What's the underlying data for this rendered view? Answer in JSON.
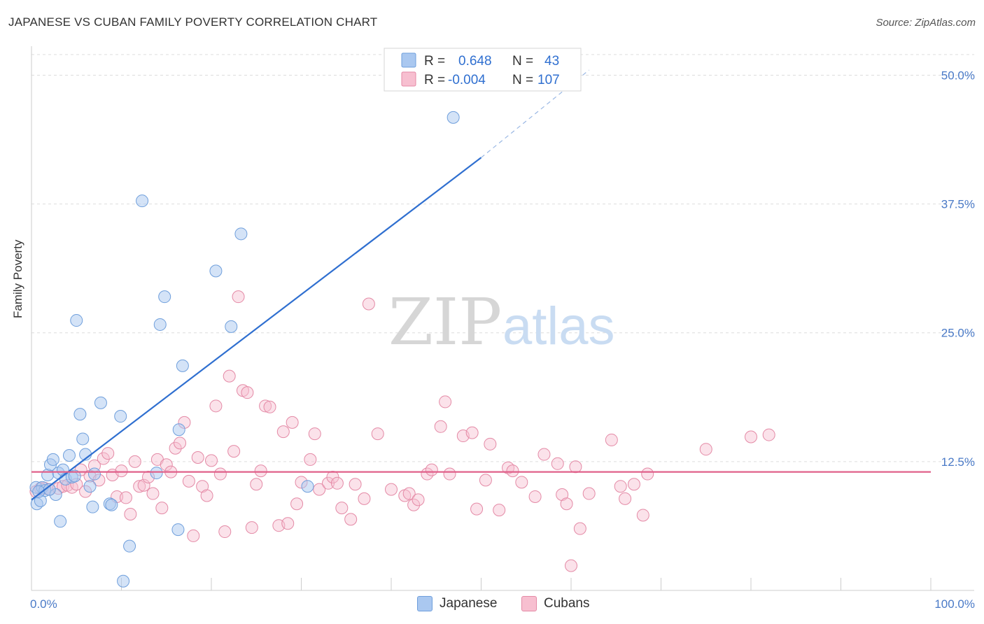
{
  "title": "JAPANESE VS CUBAN FAMILY POVERTY CORRELATION CHART",
  "source": "Source: ZipAtlas.com",
  "watermark": {
    "zip": "ZIP",
    "atlas": "atlas"
  },
  "colors": {
    "japanese_fill": "#aac8f0",
    "japanese_stroke": "#6f9fdc",
    "japanese_line": "#2f6fd0",
    "cubans_fill": "#f7bfd0",
    "cubans_stroke": "#e48aa6",
    "cubans_line": "#e0608a",
    "axis_text": "#4a7ac7",
    "grid": "#dddddd"
  },
  "legend": {
    "rows": [
      {
        "r_label": "R =",
        "r_value": "0.648",
        "n_label": "N =",
        "n_value": "43"
      },
      {
        "r_label": "R =",
        "r_value": "-0.004",
        "n_label": "N =",
        "n_value": "107"
      }
    ]
  },
  "bottom_legend": {
    "japanese": "Japanese",
    "cubans": "Cubans"
  },
  "chart_data": {
    "type": "scatter",
    "xlabel": "",
    "ylabel": "Family Poverty",
    "xlim": [
      0,
      100
    ],
    "ylim": [
      0,
      52
    ],
    "x_tick_labels": [
      {
        "value": 0,
        "label": "0.0%"
      },
      {
        "value": 100,
        "label": "100.0%"
      }
    ],
    "y_ticks": [
      {
        "value": 12.5,
        "label": "12.5%"
      },
      {
        "value": 25.0,
        "label": "25.0%"
      },
      {
        "value": 37.5,
        "label": "37.5%"
      },
      {
        "value": 50.0,
        "label": "50.0%"
      }
    ],
    "grid": true,
    "legend_position": "top-center",
    "series": [
      {
        "name": "Japanese",
        "points": [
          [
            0.5,
            10.0
          ],
          [
            0.6,
            8.4
          ],
          [
            1.0,
            8.7
          ],
          [
            1.2,
            10.0
          ],
          [
            1.5,
            9.7
          ],
          [
            1.8,
            11.2
          ],
          [
            2.1,
            12.2
          ],
          [
            2.4,
            12.7
          ],
          [
            2.7,
            9.3
          ],
          [
            3.0,
            11.4
          ],
          [
            3.2,
            6.7
          ],
          [
            3.5,
            11.7
          ],
          [
            3.8,
            10.8
          ],
          [
            4.2,
            13.1
          ],
          [
            4.5,
            11.0
          ],
          [
            4.8,
            11.1
          ],
          [
            5.0,
            26.2
          ],
          [
            5.4,
            17.1
          ],
          [
            5.7,
            14.7
          ],
          [
            6.0,
            13.2
          ],
          [
            6.5,
            10.1
          ],
          [
            6.8,
            8.1
          ],
          [
            7.0,
            11.3
          ],
          [
            7.7,
            18.2
          ],
          [
            8.7,
            8.4
          ],
          [
            8.9,
            8.3
          ],
          [
            9.9,
            16.9
          ],
          [
            10.9,
            4.3
          ],
          [
            10.2,
            0.9
          ],
          [
            12.3,
            37.8
          ],
          [
            13.9,
            11.4
          ],
          [
            14.3,
            25.8
          ],
          [
            14.8,
            28.5
          ],
          [
            16.4,
            15.6
          ],
          [
            16.8,
            21.8
          ],
          [
            16.3,
            5.9
          ],
          [
            20.5,
            31.0
          ],
          [
            22.2,
            25.6
          ],
          [
            23.3,
            34.6
          ],
          [
            30.7,
            10.1
          ],
          [
            46.9,
            45.9
          ],
          [
            0.8,
            9.6
          ],
          [
            2.0,
            9.8
          ]
        ],
        "trend": {
          "x": [
            0,
            50
          ],
          "y": [
            8.8,
            42.0
          ],
          "dash_to": [
            62,
            50.5
          ]
        }
      },
      {
        "name": "Cubans",
        "points": [
          [
            0.5,
            9.6
          ],
          [
            1.0,
            9.9
          ],
          [
            1.5,
            9.9
          ],
          [
            2.0,
            9.8
          ],
          [
            3.0,
            9.9
          ],
          [
            3.5,
            10.1
          ],
          [
            4.0,
            10.2
          ],
          [
            4.5,
            10.0
          ],
          [
            5.0,
            10.3
          ],
          [
            5.5,
            11.7
          ],
          [
            6.0,
            9.6
          ],
          [
            6.5,
            11.1
          ],
          [
            7.0,
            12.1
          ],
          [
            7.5,
            10.7
          ],
          [
            8.0,
            12.8
          ],
          [
            8.5,
            13.3
          ],
          [
            9.0,
            11.2
          ],
          [
            9.5,
            9.1
          ],
          [
            10.0,
            11.6
          ],
          [
            10.5,
            9.0
          ],
          [
            11.0,
            7.4
          ],
          [
            11.5,
            12.5
          ],
          [
            12.0,
            10.1
          ],
          [
            12.5,
            10.2
          ],
          [
            13.0,
            11.0
          ],
          [
            13.5,
            9.4
          ],
          [
            14.0,
            12.7
          ],
          [
            14.5,
            8.0
          ],
          [
            15.0,
            12.2
          ],
          [
            15.5,
            11.5
          ],
          [
            16.0,
            13.8
          ],
          [
            16.5,
            14.3
          ],
          [
            17.0,
            16.3
          ],
          [
            17.5,
            10.6
          ],
          [
            18.0,
            5.3
          ],
          [
            18.5,
            12.9
          ],
          [
            19.0,
            10.1
          ],
          [
            19.5,
            9.2
          ],
          [
            20.0,
            12.6
          ],
          [
            20.5,
            17.9
          ],
          [
            21.0,
            11.3
          ],
          [
            21.5,
            5.7
          ],
          [
            22.0,
            20.8
          ],
          [
            22.5,
            13.5
          ],
          [
            23.0,
            28.5
          ],
          [
            23.5,
            19.4
          ],
          [
            24.0,
            19.2
          ],
          [
            24.5,
            6.1
          ],
          [
            25.0,
            10.3
          ],
          [
            25.5,
            11.6
          ],
          [
            26.0,
            17.9
          ],
          [
            26.5,
            17.8
          ],
          [
            27.5,
            6.3
          ],
          [
            28.0,
            15.4
          ],
          [
            28.5,
            6.5
          ],
          [
            29.0,
            16.3
          ],
          [
            29.5,
            8.4
          ],
          [
            30.0,
            10.5
          ],
          [
            31.0,
            12.7
          ],
          [
            31.5,
            15.2
          ],
          [
            32.0,
            9.8
          ],
          [
            33.0,
            10.4
          ],
          [
            33.5,
            11.0
          ],
          [
            34.0,
            10.4
          ],
          [
            34.5,
            8.0
          ],
          [
            35.5,
            6.9
          ],
          [
            36.0,
            10.3
          ],
          [
            37.0,
            8.9
          ],
          [
            37.5,
            27.8
          ],
          [
            38.5,
            15.2
          ],
          [
            40.0,
            9.8
          ],
          [
            41.5,
            9.2
          ],
          [
            42.0,
            9.4
          ],
          [
            42.5,
            8.3
          ],
          [
            43.0,
            8.8
          ],
          [
            44.0,
            11.3
          ],
          [
            44.5,
            11.7
          ],
          [
            45.5,
            15.9
          ],
          [
            46.0,
            18.3
          ],
          [
            46.5,
            11.3
          ],
          [
            48.0,
            15.0
          ],
          [
            49.0,
            15.3
          ],
          [
            49.5,
            7.9
          ],
          [
            50.5,
            10.7
          ],
          [
            51.0,
            14.2
          ],
          [
            52.0,
            7.8
          ],
          [
            53.0,
            11.9
          ],
          [
            53.5,
            11.6
          ],
          [
            54.5,
            10.5
          ],
          [
            56.0,
            9.1
          ],
          [
            57.0,
            13.2
          ],
          [
            58.5,
            12.3
          ],
          [
            59.0,
            9.3
          ],
          [
            59.5,
            8.4
          ],
          [
            60.0,
            2.4
          ],
          [
            60.5,
            12.0
          ],
          [
            61.0,
            6.0
          ],
          [
            62.0,
            9.4
          ],
          [
            64.5,
            14.6
          ],
          [
            65.5,
            10.1
          ],
          [
            66.0,
            8.9
          ],
          [
            67.0,
            10.3
          ],
          [
            68.0,
            7.3
          ],
          [
            68.5,
            11.3
          ],
          [
            75.0,
            13.7
          ],
          [
            80.0,
            14.9
          ],
          [
            82.0,
            15.1
          ]
        ],
        "trend": {
          "x": [
            0,
            100
          ],
          "y": [
            11.5,
            11.5
          ]
        }
      }
    ]
  }
}
